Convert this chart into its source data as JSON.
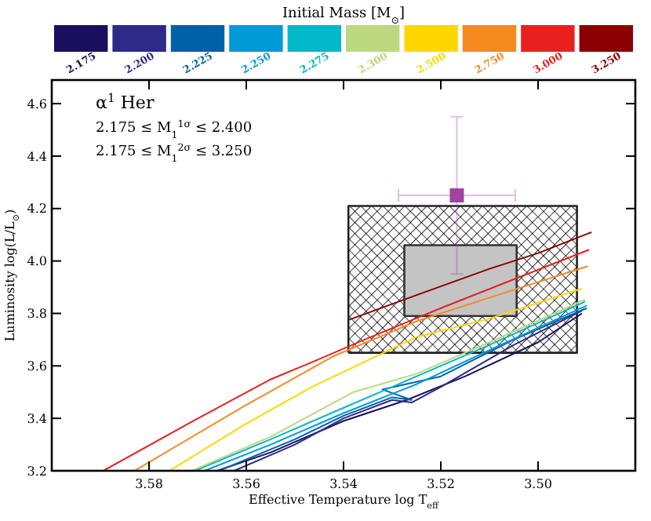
{
  "chart_data": {
    "type": "line",
    "xlabel": "Effective Temperature log T$_{eff}$",
    "ylabel": "Luminosity log(L/L$_{⊙}$)",
    "legend_title": "Initial Mass [M$_{⊙}$]",
    "legend": "top",
    "annotations": [
      "α$^{1}$ Her",
      "2.175 ≤ M$_{1}$$^{1σ}$ ≤ 2.400",
      "2.175 ≤ M$_{1}$$^{2σ}$ ≤ 3.250"
    ],
    "xlim": [
      3.6,
      3.48
    ],
    "ylim": [
      3.2,
      4.69
    ],
    "xticks": [
      3.58,
      3.56,
      3.54,
      3.52,
      {
        "value": 3.5,
        "label": "3.50"
      }
    ],
    "yticks": [
      3.2,
      3.4,
      3.6,
      3.8,
      {
        "value": 4.0,
        "label": "4.0"
      },
      4.2,
      4.4,
      4.6
    ],
    "series": [
      {
        "type": "area",
        "color": "#222222",
        "x": [
          3.539,
          3.492,
          3.492,
          3.539,
          3.539
        ],
        "values": [
          3.65,
          3.65,
          4.21,
          4.21,
          3.65
        ]
      },
      {
        "type": "area",
        "color": "#333333",
        "x": [
          3.5275,
          3.5044,
          3.5044,
          3.5275,
          3.5275
        ],
        "values": [
          3.79,
          3.79,
          4.06,
          4.06,
          3.79
        ]
      },
      {
        "name": "2.175",
        "color": "#1a0f5e",
        "x": [
          3.566,
          3.555,
          3.54,
          3.527,
          3.515,
          3.5,
          3.491
        ],
        "values": [
          3.2,
          3.27,
          3.39,
          3.47,
          3.56,
          3.69,
          3.8
        ]
      },
      {
        "name": "2.200",
        "color": "#2e2a88",
        "x": [
          3.5625,
          3.55,
          3.54,
          3.53,
          3.526,
          3.52,
          3.505,
          3.491
        ],
        "values": [
          3.2,
          3.3,
          3.4,
          3.47,
          3.46,
          3.52,
          3.68,
          3.81
        ]
      },
      {
        "name": "2.225",
        "color": "#0060a8",
        "x": [
          3.5656,
          3.55,
          3.54,
          3.53,
          3.526,
          3.532,
          3.52,
          3.505,
          3.49
        ],
        "values": [
          3.2,
          3.32,
          3.41,
          3.48,
          3.47,
          3.51,
          3.56,
          3.7,
          3.82
        ]
      },
      {
        "name": "2.250",
        "color": "#009ad8",
        "x": [
          3.5686,
          3.555,
          3.54,
          3.525,
          3.51,
          3.49
        ],
        "values": [
          3.2,
          3.3,
          3.42,
          3.53,
          3.66,
          3.83
        ]
      },
      {
        "name": "2.275",
        "color": "#00b8c8",
        "x": [
          3.5706,
          3.555,
          3.54,
          3.525,
          3.51,
          3.4903
        ],
        "values": [
          3.2,
          3.32,
          3.44,
          3.56,
          3.68,
          3.845
        ]
      },
      {
        "name": "2.300",
        "color": "#bcd880",
        "x": [
          3.5712,
          3.555,
          3.538,
          3.525,
          3.51,
          3.4903
        ],
        "values": [
          3.2,
          3.33,
          3.5,
          3.57,
          3.69,
          3.853
        ]
      },
      {
        "name": "2.500",
        "color": "#ffd700",
        "x": [
          3.5758,
          3.56,
          3.5465,
          3.525,
          3.51,
          3.491
        ],
        "values": [
          3.2,
          3.38,
          3.52,
          3.71,
          3.78,
          3.895
        ]
      },
      {
        "name": "2.750",
        "color": "#f48a20",
        "x": [
          3.583,
          3.5606,
          3.5422,
          3.525,
          3.51,
          3.4898
        ],
        "values": [
          3.2,
          3.445,
          3.636,
          3.77,
          3.86,
          3.98
        ]
      },
      {
        "name": "3.000",
        "color": "#e82020",
        "x": [
          3.5894,
          3.5703,
          3.5552,
          3.5465,
          3.5357,
          3.52,
          3.505,
          3.4895
        ],
        "values": [
          3.2,
          3.396,
          3.547,
          3.614,
          3.7,
          3.82,
          3.93,
          4.043
        ]
      },
      {
        "name": "3.250",
        "color": "#8b0000",
        "x": [
          3.539,
          3.525,
          3.51,
          3.5,
          3.489
        ],
        "values": [
          3.775,
          3.87,
          3.97,
          4.03,
          4.11
        ]
      },
      {
        "type": "scatter",
        "marker": "square",
        "color": "#a0449e",
        "x": [
          3.5167
        ],
        "values": [
          4.25
        ],
        "errors": [
          0.3
        ],
        "xerrors": [
          0.012
        ]
      }
    ]
  }
}
